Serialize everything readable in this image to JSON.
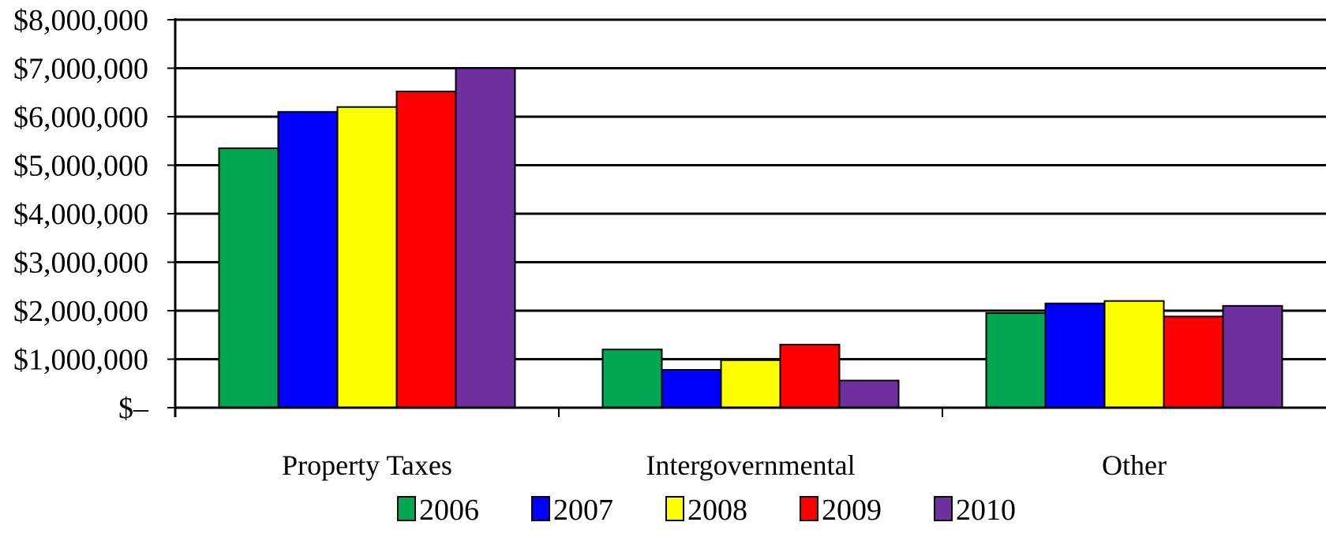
{
  "chart_data": {
    "type": "bar",
    "categories": [
      "Property Taxes",
      "Intergovernmental",
      "Other"
    ],
    "series": [
      {
        "name": "2006",
        "color": "#00a651",
        "values": [
          5350000,
          1200000,
          1950000
        ]
      },
      {
        "name": "2007",
        "color": "#0000ff",
        "values": [
          6100000,
          780000,
          2150000
        ]
      },
      {
        "name": "2008",
        "color": "#ffff00",
        "values": [
          6200000,
          980000,
          2200000
        ]
      },
      {
        "name": "2009",
        "color": "#ff0000",
        "values": [
          6520000,
          1300000,
          1880000
        ]
      },
      {
        "name": "2010",
        "color": "#7030a0",
        "values": [
          7000000,
          560000,
          2100000
        ]
      }
    ],
    "y_ticks": [
      "$–",
      "$1,000,000",
      "$2,000,000",
      "$3,000,000",
      "$4,000,000",
      "$5,000,000",
      "$6,000,000",
      "$7,000,000",
      "$8,000,000"
    ],
    "ylim": [
      0,
      8000000
    ],
    "title": "",
    "xlabel": "",
    "ylabel": "",
    "grid": true,
    "legend_position": "bottom"
  }
}
